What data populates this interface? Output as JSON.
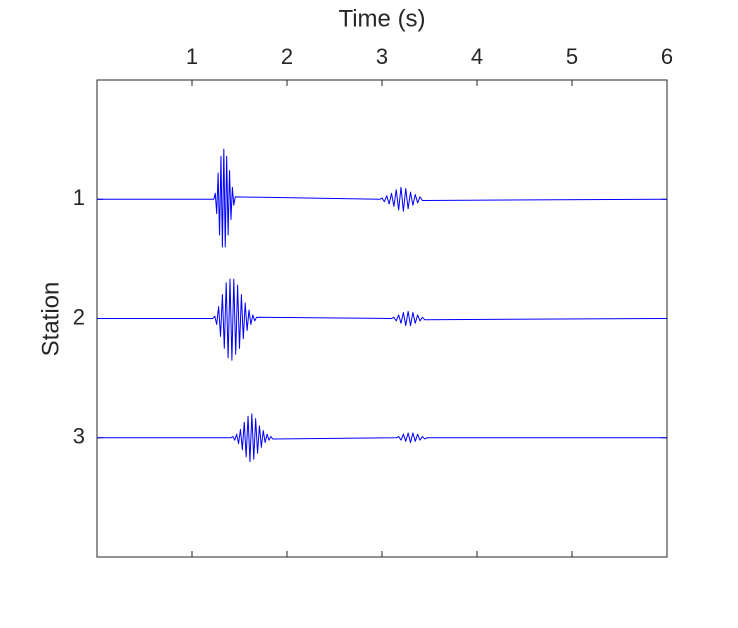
{
  "chart_data": {
    "type": "line",
    "xlabel": "Time (s)",
    "ylabel": "Station",
    "xlim": [
      0,
      6
    ],
    "xticks": [
      1,
      2,
      3,
      4,
      5,
      6
    ],
    "xaxis_position": "top",
    "ylim": [
      4,
      0
    ],
    "yticks": [
      1,
      2,
      3
    ],
    "series": [
      {
        "color": "#0000ff",
        "x": [
          0,
          1.23,
          1.245,
          1.26,
          1.275,
          1.29,
          1.305,
          1.32,
          1.335,
          1.35,
          1.365,
          1.38,
          1.395,
          1.41,
          1.425,
          1.44,
          1.455,
          2.98,
          3.0,
          3.025,
          3.05,
          3.075,
          3.1,
          3.125,
          3.15,
          3.175,
          3.2,
          3.225,
          3.25,
          3.275,
          3.3,
          3.325,
          3.35,
          3.375,
          3.4,
          3.425,
          6
        ],
        "values": [
          1,
          1,
          0.95,
          1.12,
          0.78,
          1.3,
          0.64,
          1.4,
          0.58,
          1.4,
          0.64,
          1.3,
          0.76,
          1.17,
          0.9,
          1.05,
          0.98,
          1,
          0.99,
          1.02,
          0.97,
          1.04,
          0.95,
          1.06,
          0.92,
          1.09,
          0.9,
          1.1,
          0.91,
          1.08,
          0.94,
          1.05,
          0.96,
          1.03,
          0.98,
          1.01,
          1
        ]
      },
      {
        "color": "#0000ff",
        "x": [
          0,
          1.22,
          1.24,
          1.26,
          1.28,
          1.3,
          1.32,
          1.34,
          1.36,
          1.38,
          1.4,
          1.42,
          1.44,
          1.46,
          1.48,
          1.5,
          1.52,
          1.54,
          1.56,
          1.58,
          1.6,
          1.62,
          1.64,
          1.66,
          1.68,
          3.1,
          3.125,
          3.15,
          3.175,
          3.2,
          3.225,
          3.25,
          3.275,
          3.3,
          3.325,
          3.35,
          3.375,
          3.4,
          3.425,
          3.45,
          6
        ],
        "values": [
          2,
          2,
          1.98,
          2.05,
          1.9,
          2.15,
          1.8,
          2.25,
          1.7,
          2.33,
          1.67,
          2.35,
          1.67,
          2.3,
          1.72,
          2.25,
          1.8,
          2.17,
          1.87,
          2.1,
          1.93,
          2.05,
          1.97,
          2.02,
          1.99,
          2,
          1.99,
          2.02,
          1.97,
          2.04,
          1.95,
          2.06,
          1.94,
          2.06,
          1.95,
          2.04,
          1.97,
          2.02,
          1.99,
          2.01,
          2
        ]
      },
      {
        "color": "#0000ff",
        "x": [
          0,
          1.41,
          1.43,
          1.45,
          1.47,
          1.49,
          1.51,
          1.53,
          1.55,
          1.57,
          1.59,
          1.61,
          1.63,
          1.65,
          1.67,
          1.69,
          1.71,
          1.73,
          1.75,
          1.77,
          1.79,
          1.81,
          1.83,
          1.85,
          3.15,
          3.175,
          3.2,
          3.225,
          3.25,
          3.275,
          3.3,
          3.325,
          3.35,
          3.375,
          3.4,
          3.425,
          3.45,
          3.475,
          6
        ],
        "values": [
          3,
          3,
          2.99,
          3.02,
          2.97,
          3.05,
          2.93,
          3.1,
          2.87,
          3.16,
          2.82,
          3.2,
          2.8,
          3.18,
          2.84,
          3.13,
          2.9,
          3.08,
          2.94,
          3.04,
          2.97,
          3.02,
          2.99,
          3.01,
          3,
          2.99,
          3.02,
          2.97,
          3.03,
          2.96,
          3.04,
          2.96,
          3.03,
          2.97,
          3.02,
          2.99,
          3.01,
          3,
          3
        ]
      }
    ]
  }
}
